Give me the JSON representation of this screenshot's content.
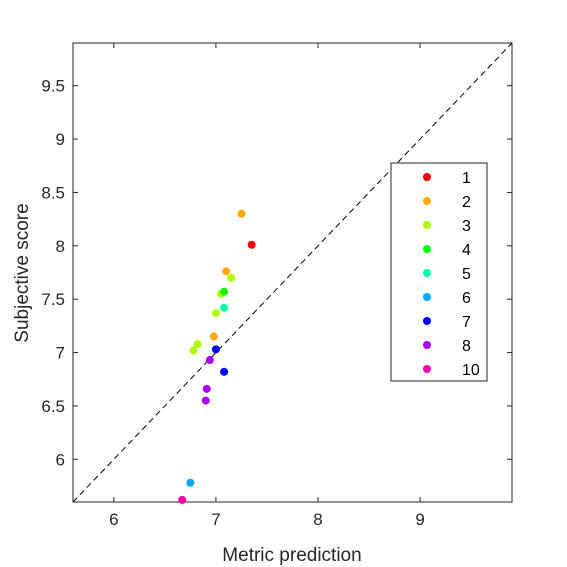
{
  "chart_data": {
    "type": "scatter",
    "xlabel": "Metric prediction",
    "ylabel": "Subjective score",
    "xlim": [
      5.6,
      9.9
    ],
    "ylim": [
      5.6,
      9.9
    ],
    "xticks": [
      6,
      7,
      8,
      9
    ],
    "xtick_labels": [
      "6",
      "7",
      "8",
      "9"
    ],
    "yticks": [
      6,
      6.5,
      7,
      7.5,
      8,
      8.5,
      9,
      9.5
    ],
    "ytick_labels": [
      "6",
      "6.5",
      "7",
      "7.5",
      "8",
      "8.5",
      "9",
      "9.5"
    ],
    "grid": false,
    "reference_line": "y = x (dashed)",
    "legend_position": "right",
    "series": [
      {
        "name": "1",
        "color": "#ff0000",
        "points": [
          [
            7.35,
            8.01
          ]
        ]
      },
      {
        "name": "2",
        "color": "#ffaa00",
        "points": [
          [
            7.25,
            8.3
          ],
          [
            7.1,
            7.76
          ],
          [
            6.98,
            7.15
          ]
        ]
      },
      {
        "name": "3",
        "color": "#aaff00",
        "points": [
          [
            7.15,
            7.7
          ],
          [
            7.05,
            7.55
          ],
          [
            7.0,
            7.37
          ],
          [
            6.82,
            7.08
          ],
          [
            6.78,
            7.02
          ]
        ]
      },
      {
        "name": "4",
        "color": "#00ff00",
        "points": [
          [
            7.08,
            7.57
          ]
        ]
      },
      {
        "name": "5",
        "color": "#00ffaa",
        "points": [
          [
            7.08,
            7.42
          ]
        ]
      },
      {
        "name": "6",
        "color": "#00aaff",
        "points": [
          [
            6.75,
            5.78
          ]
        ]
      },
      {
        "name": "7",
        "color": "#0000ff",
        "points": [
          [
            7.0,
            7.03
          ],
          [
            7.08,
            6.82
          ]
        ]
      },
      {
        "name": "8",
        "color": "#aa00ff",
        "points": [
          [
            6.94,
            6.93
          ],
          [
            6.91,
            6.66
          ],
          [
            6.9,
            6.55
          ]
        ]
      },
      {
        "name": "10",
        "color": "#ff00aa",
        "points": [
          [
            6.67,
            5.62
          ]
        ]
      }
    ]
  }
}
